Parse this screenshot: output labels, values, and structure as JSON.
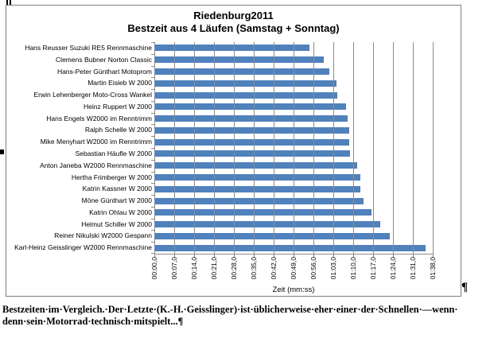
{
  "document": {
    "pilcrow": "¶",
    "paragraph_line1": "Bestzeiten·im·Vergleich.·Der·Letzte·(K.-H.·Geisslinger)·ist·üblicherweise·eher·einer·der·Schnellen·—wenn·",
    "paragraph_line2": "denn·sein·Motorrad·technisch·mitspielt...¶"
  },
  "chart_data": {
    "type": "bar",
    "orientation": "horizontal",
    "title": "Riedenburg2011",
    "subtitle": "Bestzeit aus 4 Läufen (Samstag + Sonntag)",
    "xlabel": "Zeit (mm:ss)",
    "value_unit": "seconds",
    "xlim": [
      0,
      98
    ],
    "grid": true,
    "legend": false,
    "bar_color": "#4F81BD",
    "axis_color": "#8c8c8c",
    "categories": [
      "Hans Reusser Suzuki RE5 Rennmaschine",
      "Clemens Bubner Norton Classic",
      "Hans-Peter Günthart Motoprom",
      "Martin Eisleb W 2000",
      "Erwin Lehenberger Moto-Cross Wankel",
      "Heinz Ruppert W 2000",
      "Hans Engels W2000 im Renntrimm",
      "Ralph Schelle W 2000",
      "Mike Menyhart W2000 im Renntrimm",
      "Sebastian Häufle W 2000",
      "Anton Janeba W2000 Rennmaschine",
      "Hertha Frimberger W 2000",
      "Katrin Kassner W 2000",
      "Möne Günthart W 2000",
      "Katrin Ohlau W 2000",
      "Helmut Schiller W 2000",
      "Reiner Nikulski W2000 Gespann",
      "Karl-Heinz Geisslinger W2000 Rennmaschine"
    ],
    "values": [
      54.5,
      59.5,
      61.5,
      64,
      64.5,
      67.5,
      68,
      68.5,
      68.5,
      69,
      71.5,
      72.5,
      72.5,
      73.5,
      76.5,
      79.5,
      83,
      95.5
    ],
    "x_ticks": [
      {
        "label": "00:00,0",
        "seconds": 0
      },
      {
        "label": "00:07,0",
        "seconds": 7
      },
      {
        "label": "00:14,0",
        "seconds": 14
      },
      {
        "label": "00:21,0",
        "seconds": 21
      },
      {
        "label": "00:28,0",
        "seconds": 28
      },
      {
        "label": "00:35,0",
        "seconds": 35
      },
      {
        "label": "00:42,0",
        "seconds": 42
      },
      {
        "label": "00:49,0",
        "seconds": 49
      },
      {
        "label": "00:56,0",
        "seconds": 56
      },
      {
        "label": "01:03,0",
        "seconds": 63
      },
      {
        "label": "01:10,0",
        "seconds": 70
      },
      {
        "label": "01:17,0",
        "seconds": 77
      },
      {
        "label": "01:24,0",
        "seconds": 84
      },
      {
        "label": "01:31,0",
        "seconds": 91
      },
      {
        "label": "01:38,0",
        "seconds": 98
      }
    ]
  }
}
